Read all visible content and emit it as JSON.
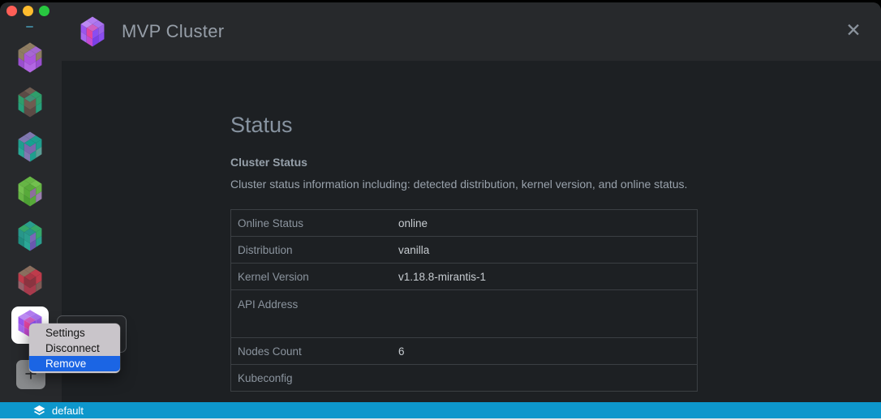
{
  "window": {
    "title": "MVP Cluster",
    "close_icon": "✕"
  },
  "traffic_lights": {
    "close": "#ff5f57",
    "minimize": "#febc2e",
    "zoom": "#28c840"
  },
  "sidebar": {
    "clusters": [
      {
        "colors": [
          "#8f7d62",
          "#a368cf",
          "#a668d2",
          "#8f7d62",
          "#8f7d62",
          "#ab54dd",
          "#9a4fcf",
          "#b266e2",
          "#ab54dd",
          "#8f7d62",
          "#b266e2",
          "#9a4fcf"
        ]
      },
      {
        "colors": [
          "#6f5c51",
          "#2f9e6b",
          "#3f9077",
          "#5c4b46",
          "#2f9e6b",
          "#6f5c51",
          "#27a07a",
          "#5c4b46",
          "#6f5c51",
          "#2f9e6b",
          "#5c4b46",
          "#27a07a"
        ]
      },
      {
        "colors": [
          "#8078b0",
          "#1f9e8e",
          "#16a090",
          "#8078b0",
          "#1f9e8e",
          "#7a68ac",
          "#2aa896",
          "#8078b0",
          "#7a68ac",
          "#1f9e8e",
          "#1f9e8e",
          "#5a9e96"
        ]
      },
      {
        "colors": [
          "#66b545",
          "#72c04e",
          "#58aa3a",
          "#66b545",
          "#72c04e",
          "#58aa3a",
          "#66b545",
          "#4da034",
          "#8d6f9d",
          "#66b545",
          "#58aa3a",
          "#9a7fae"
        ]
      },
      {
        "colors": [
          "#2a9e8e",
          "#35a86a",
          "#27968a",
          "#35a86a",
          "#27968a",
          "#2a9e8e",
          "#1f8e80",
          "#2aa896",
          "#7a68b8",
          "#35a86a",
          "#6a58b0",
          "#2a9e8e"
        ]
      },
      {
        "colors": [
          "#8a6e5e",
          "#bf3b4b",
          "#ab3545",
          "#8a6e5e",
          "#bf3b4b",
          "#8a3440",
          "#96616a",
          "#a83a4c",
          "#8a3440",
          "#bf3b4b",
          "#a83a4c",
          "#7e5a55"
        ]
      }
    ],
    "active_cluster": {
      "colors": [
        "#b27cf0",
        "#a873ee",
        "#cf5ec2",
        "#bc8af2",
        "#9a55ee",
        "#e2459e",
        "#a768f0",
        "#c44ad0",
        "#8b4df0",
        "#9a5fe8",
        "#7c40e6",
        "#8b4df0"
      ]
    },
    "add_button_label": "+"
  },
  "context_menu": {
    "items": [
      {
        "label": "Settings",
        "highlighted": false
      },
      {
        "label": "Disconnect",
        "highlighted": false
      },
      {
        "label": "Remove",
        "highlighted": true
      }
    ],
    "highlight_color": "#1b65e4"
  },
  "main": {
    "heading": "Status",
    "section_title": "Cluster Status",
    "section_description": "Cluster status information including: detected distribution, kernel version, and online status.",
    "table": {
      "rows": [
        {
          "label": "Online Status",
          "value": "online"
        },
        {
          "label": "Distribution",
          "value": "vanilla"
        },
        {
          "label": "Kernel Version",
          "value": "v1.18.8-mirantis-1"
        },
        {
          "label": "API Address",
          "value": ""
        },
        {
          "label": "Nodes Count",
          "value": "6"
        },
        {
          "label": "Kubeconfig",
          "value": ""
        }
      ]
    }
  },
  "statusbar": {
    "namespace": "default",
    "bg": "#0d97cc"
  }
}
